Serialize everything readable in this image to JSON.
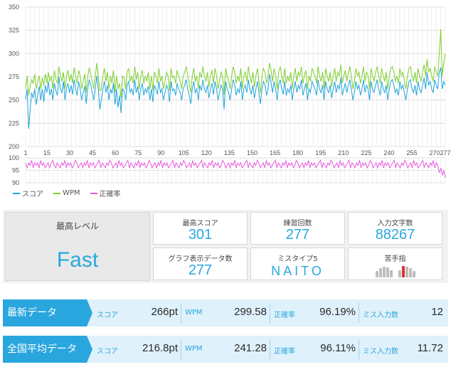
{
  "chart_data": [
    {
      "type": "line",
      "ylim": [
        200,
        350
      ],
      "y_ticks": [
        "200",
        "225",
        "250",
        "275",
        "300",
        "325",
        "350"
      ],
      "xlim": [
        1,
        277
      ],
      "grid": true,
      "series": [
        {
          "name": "スコア",
          "color": "#1fa4dc",
          "y": [
            251,
            262,
            219,
            240,
            258,
            252,
            262,
            245,
            256,
            265,
            250,
            262,
            248,
            266,
            258,
            270,
            255,
            262,
            250,
            268,
            260,
            255,
            275,
            262,
            258,
            270,
            250,
            263,
            268,
            258,
            266,
            256,
            272,
            262,
            255,
            270,
            262,
            250,
            258,
            265,
            246,
            262,
            272,
            266,
            258,
            250,
            262,
            276,
            262,
            240,
            250,
            262,
            270,
            258,
            266,
            250,
            262,
            257,
            268,
            245,
            262,
            242,
            255,
            236,
            262,
            260,
            250,
            266,
            270,
            258,
            262,
            255,
            272,
            258,
            265,
            250,
            262,
            268,
            255,
            262,
            258,
            265,
            250,
            262,
            248,
            266,
            262,
            256,
            270,
            258,
            262,
            250,
            258,
            266,
            262,
            248,
            270,
            260,
            262,
            255,
            268,
            262,
            258,
            250,
            262,
            266,
            272,
            262,
            255,
            246,
            262,
            270,
            258,
            262,
            250,
            266,
            260,
            272,
            262,
            258,
            266,
            252,
            262,
            268,
            256,
            270,
            262,
            250,
            258,
            266,
            262,
            240,
            270,
            262,
            258,
            250,
            262,
            272,
            266,
            255,
            262,
            258,
            270,
            250,
            262,
            266,
            258,
            272,
            262,
            256,
            266,
            252,
            262,
            270,
            258,
            246,
            262,
            270,
            266,
            255,
            262,
            278,
            268,
            258,
            270,
            262,
            250,
            266,
            272,
            262,
            256,
            270,
            255,
            262,
            258,
            266,
            250,
            262,
            270,
            258,
            266,
            262,
            272,
            255,
            262,
            268,
            250,
            262,
            258,
            270,
            266,
            262,
            255,
            272,
            262,
            258,
            266,
            250,
            270,
            262,
            258,
            266,
            252,
            262,
            270,
            258,
            266,
            262,
            274,
            255,
            262,
            268,
            258,
            266,
            272,
            262,
            250,
            258,
            270,
            262,
            266,
            255,
            262,
            272,
            258,
            266,
            262,
            250,
            270,
            262,
            258,
            266,
            272,
            262,
            255,
            270,
            262,
            258,
            266,
            250,
            262,
            270,
            272,
            266,
            258,
            262,
            255,
            270,
            262,
            266,
            258,
            250,
            262,
            270,
            272,
            262,
            258,
            266,
            255,
            270,
            262,
            258,
            266,
            274,
            262,
            280,
            266,
            270,
            262,
            258,
            272,
            266,
            262,
            280,
            285,
            262,
            270,
            266
          ],
          "note": "values estimated from plot"
        },
        {
          "name": "WPM",
          "color": "#7ccf2c",
          "y": [
            262,
            276,
            255,
            265,
            272,
            268,
            278,
            262,
            270,
            276,
            262,
            274,
            266,
            278,
            268,
            280,
            270,
            276,
            262,
            282,
            272,
            268,
            286,
            276,
            270,
            280,
            262,
            276,
            282,
            270,
            278,
            268,
            285,
            276,
            268,
            282,
            276,
            262,
            270,
            278,
            258,
            275,
            285,
            278,
            270,
            262,
            276,
            290,
            274,
            260,
            262,
            276,
            284,
            270,
            280,
            262,
            276,
            268,
            282,
            258,
            276,
            262,
            268,
            252,
            276,
            274,
            262,
            280,
            284,
            270,
            276,
            268,
            286,
            272,
            280,
            262,
            276,
            282,
            268,
            276,
            270,
            280,
            262,
            276,
            260,
            280,
            276,
            268,
            284,
            270,
            276,
            262,
            270,
            280,
            276,
            260,
            284,
            274,
            276,
            268,
            282,
            276,
            270,
            262,
            276,
            280,
            286,
            276,
            268,
            258,
            276,
            284,
            270,
            276,
            262,
            280,
            274,
            286,
            276,
            270,
            280,
            264,
            276,
            282,
            268,
            284,
            276,
            262,
            270,
            280,
            276,
            256,
            284,
            276,
            270,
            262,
            276,
            286,
            280,
            268,
            276,
            270,
            284,
            262,
            276,
            280,
            270,
            286,
            276,
            268,
            280,
            264,
            276,
            284,
            270,
            258,
            276,
            284,
            280,
            268,
            276,
            290,
            282,
            270,
            284,
            276,
            262,
            280,
            286,
            276,
            268,
            284,
            268,
            276,
            270,
            280,
            262,
            276,
            284,
            270,
            280,
            276,
            286,
            268,
            276,
            282,
            262,
            276,
            270,
            284,
            280,
            276,
            268,
            286,
            276,
            270,
            280,
            262,
            284,
            276,
            270,
            280,
            264,
            276,
            284,
            270,
            280,
            276,
            288,
            268,
            276,
            282,
            270,
            280,
            286,
            276,
            262,
            270,
            284,
            276,
            280,
            268,
            276,
            286,
            270,
            280,
            276,
            262,
            284,
            276,
            270,
            280,
            286,
            276,
            268,
            284,
            276,
            270,
            280,
            262,
            276,
            284,
            286,
            280,
            270,
            276,
            268,
            284,
            276,
            280,
            270,
            262,
            276,
            284,
            286,
            276,
            270,
            280,
            268,
            284,
            276,
            270,
            280,
            288,
            276,
            294,
            280,
            284,
            276,
            270,
            286,
            280,
            276,
            300,
            326,
            276,
            290,
            300
          ],
          "note": "values estimated from plot"
        }
      ]
    },
    {
      "type": "line",
      "ylim": [
        90,
        100
      ],
      "y_ticks": [
        "90",
        "95",
        "100"
      ],
      "x_ticks": [
        "1",
        "15",
        "30",
        "45",
        "60",
        "75",
        "90",
        "105",
        "120",
        "135",
        "150",
        "165",
        "180",
        "195",
        "210",
        "225",
        "240",
        "255",
        "270",
        "277"
      ],
      "xlim": [
        1,
        277
      ],
      "grid": true,
      "series": [
        {
          "name": "正確率",
          "color": "#e85ce0",
          "y": [
            98,
            96,
            98,
            97,
            99,
            96,
            98,
            97,
            98,
            96,
            99,
            97,
            98,
            96,
            97,
            98,
            96,
            98,
            99,
            97,
            96,
            98,
            97,
            96,
            98,
            97,
            99,
            96,
            98,
            97,
            98,
            96,
            97,
            99,
            98,
            96,
            97,
            98,
            96,
            98,
            97,
            99,
            96,
            98,
            97,
            98,
            96,
            97,
            98,
            99,
            96,
            98,
            97,
            96,
            98,
            97,
            99,
            98,
            96,
            97,
            98,
            96,
            99,
            97,
            98,
            96,
            97,
            98,
            99,
            96,
            98,
            97,
            96,
            98,
            97,
            99,
            96,
            98,
            97,
            98,
            96,
            97,
            99,
            98,
            96,
            97,
            98,
            96,
            98,
            97,
            99,
            96,
            98,
            97,
            98,
            96,
            97,
            98,
            99,
            96,
            98,
            97,
            96,
            98,
            97,
            99,
            98,
            96,
            97,
            98,
            96,
            99,
            97,
            98,
            96,
            97,
            98,
            99,
            96,
            98,
            97,
            96,
            98,
            97,
            99,
            96,
            98,
            97,
            98,
            96,
            97,
            99,
            98,
            96,
            97,
            98,
            96,
            98,
            97,
            99,
            96,
            98,
            97,
            98,
            96,
            97,
            98,
            99,
            96,
            98,
            97,
            96,
            98,
            97,
            99,
            98,
            96,
            97,
            98,
            96,
            99,
            97,
            98,
            96,
            97,
            98,
            99,
            96,
            98,
            97,
            96,
            98,
            97,
            99,
            96,
            98,
            97,
            98,
            96,
            97,
            99,
            98,
            96,
            97,
            98,
            96,
            98,
            97,
            99,
            96,
            98,
            97,
            98,
            96,
            97,
            98,
            99,
            96,
            98,
            97,
            96,
            98,
            97,
            99,
            98,
            96,
            97,
            98,
            96,
            99,
            97,
            98,
            96,
            97,
            98,
            99,
            96,
            98,
            97,
            96,
            98,
            97,
            99,
            96,
            98,
            97,
            98,
            96,
            97,
            99,
            98,
            96,
            97,
            98,
            96,
            98,
            97,
            99,
            96,
            98,
            97,
            98,
            96,
            97,
            98,
            99,
            96,
            98,
            97,
            96,
            98,
            97,
            99,
            98,
            96,
            97,
            98,
            96,
            99,
            97,
            98,
            96,
            97,
            98,
            99,
            96,
            98,
            97,
            96,
            98,
            97,
            99,
            96,
            98,
            97,
            94,
            96,
            93,
            95,
            92
          ],
          "note": "values estimated from plot"
        }
      ]
    }
  ],
  "legend": [
    {
      "label": "スコア",
      "color": "#1fa4dc"
    },
    {
      "label": "WPM",
      "color": "#7ccf2c"
    },
    {
      "label": "正確率",
      "color": "#e85ce0"
    }
  ],
  "stats": {
    "max_level_title": "最高レベル",
    "max_level_value": "Fast",
    "max_score_title": "最高スコア",
    "max_score_value": "301",
    "practice_count_title": "練習回数",
    "practice_count_value": "277",
    "chars_typed_title": "入力文字数",
    "chars_typed_value": "88267",
    "graph_points_title": "グラフ表示データ数",
    "graph_points_value": "277",
    "miss_type_title": "ミスタイプ5",
    "miss_type_value": "NAITO",
    "weak_finger_title": "苦手指"
  },
  "latest": {
    "label": "最新データ",
    "score_label": "スコア",
    "score_value": "266pt",
    "wpm_label": "WPM",
    "wpm_value": "299.58",
    "accuracy_label": "正確率",
    "accuracy_value": "96.19%",
    "miss_label": "ミス入力数",
    "miss_value": "12"
  },
  "national_avg": {
    "label": "全国平均データ",
    "score_label": "スコア",
    "score_value": "216.8pt",
    "wpm_label": "WPM",
    "wpm_value": "241.28",
    "accuracy_label": "正確率",
    "accuracy_value": "96.11%",
    "miss_label": "ミス入力数",
    "miss_value": "11.72"
  },
  "colors": {
    "accent": "#2aa6de",
    "row_bg": "#dff1fb",
    "weak_finger": "#e23030"
  }
}
